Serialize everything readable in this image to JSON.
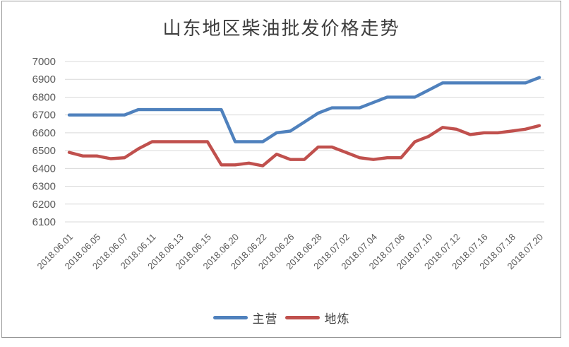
{
  "chart_data": {
    "type": "line",
    "title": "山东地区柴油批发价格走势",
    "xlabel": "",
    "ylabel": "",
    "ylim": [
      6100,
      7000
    ],
    "ytick_interval": 100,
    "ytick_labels": [
      "7000",
      "6900",
      "6800",
      "6700",
      "6600",
      "6500",
      "6400",
      "6300",
      "6200",
      "6100"
    ],
    "n_points": 35,
    "x_tick_labels": [
      "2018.06.01",
      "2018.06.05",
      "2018.06.07",
      "2018.06.11",
      "2018.06.13",
      "2018.06.15",
      "2018.06.20",
      "2018.06.22",
      "2018.06.26",
      "2018.06.28",
      "2018.07.02",
      "2018.07.04",
      "2018.07.06",
      "2018.07.10",
      "2018.07.12",
      "2018.07.16",
      "2018.07.18",
      "2018.07.20"
    ],
    "x_tick_point_indices": [
      0,
      2,
      4,
      6,
      8,
      10,
      12,
      14,
      16,
      18,
      20,
      22,
      24,
      26,
      28,
      30,
      32,
      34
    ],
    "series": [
      {
        "name": "主营",
        "color": "#4F81BD",
        "values": [
          6700,
          6700,
          6700,
          6700,
          6700,
          6730,
          6730,
          6730,
          6730,
          6730,
          6730,
          6730,
          6550,
          6550,
          6550,
          6600,
          6610,
          6660,
          6710,
          6740,
          6740,
          6740,
          6770,
          6800,
          6800,
          6800,
          6840,
          6880,
          6880,
          6880,
          6880,
          6880,
          6880,
          6880,
          6910
        ]
      },
      {
        "name": "地炼",
        "color": "#C0504D",
        "values": [
          6490,
          6470,
          6470,
          6455,
          6460,
          6510,
          6550,
          6550,
          6550,
          6550,
          6550,
          6420,
          6420,
          6430,
          6415,
          6480,
          6450,
          6450,
          6520,
          6520,
          6490,
          6460,
          6450,
          6460,
          6460,
          6550,
          6580,
          6630,
          6620,
          6590,
          6600,
          6600,
          6610,
          6620,
          6640
        ]
      }
    ],
    "grid": "horizontal",
    "legend_position": "bottom-center",
    "colors": {
      "gridline": "#D9D9D9",
      "axis_text": "#595959",
      "title_text": "#3D3D3D",
      "frame_border": "#969696"
    }
  }
}
